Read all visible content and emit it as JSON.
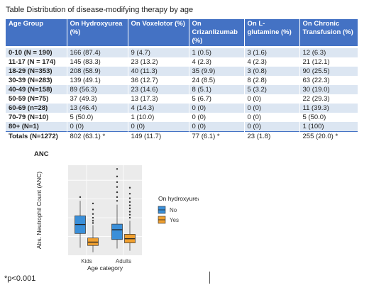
{
  "caption": "Table Distribution of disease-modifying therapy by age",
  "table": {
    "headers": [
      "Age Group",
      "On Hydroxyurea (%)",
      "On Voxelotor (%)",
      "On Crizanlizumab (%)",
      "On L-glutamine (%)",
      "On Chronic Transfusion (%)"
    ],
    "rows": [
      [
        "0-10 (N = 190)",
        "166 (87.4)",
        "9 (4.7)",
        "1 (0.5)",
        "3 (1.6)",
        "12 (6.3)"
      ],
      [
        "11-17 (N = 174)",
        "145 (83.3)",
        "23 (13.2)",
        "4 (2.3)",
        "4 (2.3)",
        "21 (12.1)"
      ],
      [
        "18-29 (N=353)",
        "208 (58.9)",
        "40 (11.3)",
        "35 (9.9)",
        "3 (0.8)",
        "90 (25.5)"
      ],
      [
        "30-39 (N=283)",
        "139 (49.1)",
        "36 (12.7)",
        "24 (8.5)",
        "8 (2.8)",
        " 63 (22.3)"
      ],
      [
        "40-49 (N=158)",
        "89 (56.3)",
        "23 (14.6)",
        "8 (5.1)",
        "5 (3.2)",
        "30 (19.0)"
      ],
      [
        "50-59 (N=75)",
        "37 (49.3)",
        "13 (17.3)",
        "5 (6.7)",
        "0 (0)",
        "22 (29.3)"
      ],
      [
        "60-69 (n=28)",
        "13 (46.4)",
        "4 (14.3)",
        "0 (0)",
        "0 (0)",
        "11 (39.3)"
      ],
      [
        "70-79 (N=10)",
        "5 (50.0)",
        "1 (10.0)",
        "0 (0)",
        "0 (0)",
        "5 (50.0)"
      ],
      [
        "80+ (N=1)",
        "0 (0)",
        "0 (0)",
        "0 (0)",
        "0 (0)",
        "1 (100)"
      ]
    ],
    "totals": [
      "Totals (N=1272)",
      "802 (63.1) *",
      "149 (11.7)",
      "77 (6.1) *",
      "23 (1.8)",
      "255 (20.0) *"
    ]
  },
  "figure_title": "ANC",
  "chart_data": {
    "type": "boxplot",
    "categories": [
      "Kids",
      "Adults"
    ],
    "xlabel": "Age category",
    "ylabel": "Abs. Neutrophil Count (ANC)",
    "legend_title": "On hydroxyurea",
    "legend_placement": "right",
    "series": [
      {
        "name": "No",
        "color": "#3a8fd9",
        "boxes": [
          {
            "min": 2,
            "q1": 5.8,
            "median": 8.2,
            "q3": 10.5,
            "max": 14.5,
            "outliers": [
              15.5
            ]
          },
          {
            "min": 1.8,
            "q1": 4.2,
            "median": 6.8,
            "q3": 8.3,
            "max": 13.5,
            "outliers": [
              14.5,
              15.5,
              16.8,
              18.2,
              19.5,
              21,
              23
            ]
          }
        ]
      },
      {
        "name": "Yes",
        "color": "#f0a030",
        "boxes": [
          {
            "min": 0.8,
            "q1": 2.6,
            "median": 3.5,
            "q3": 4.6,
            "max": 8,
            "outliers": [
              8.6,
              9.2,
              10,
              11,
              12.2,
              13.8
            ]
          },
          {
            "min": 1.2,
            "q1": 3.3,
            "median": 4.4,
            "q3": 5.6,
            "max": 9.2,
            "outliers": [
              10,
              10.8,
              11.6,
              12.5,
              13.3,
              14.2,
              15.2,
              16.4,
              18
            ]
          }
        ]
      }
    ],
    "ylim": [
      0,
      24
    ]
  },
  "footnote": "*p<0.001"
}
